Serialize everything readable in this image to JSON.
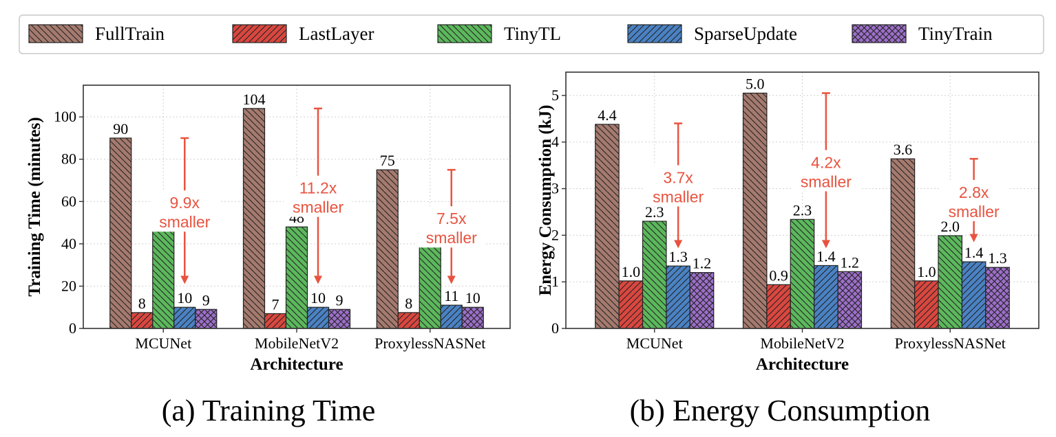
{
  "legend": {
    "entries": [
      {
        "label": "FullTrain",
        "color": "#a57a6e",
        "hatch": "back"
      },
      {
        "label": "LastLayer",
        "color": "#d9473f",
        "hatch": "fwd"
      },
      {
        "label": "TinyTL",
        "color": "#5cb85c",
        "hatch": "back"
      },
      {
        "label": "SparseUpdate",
        "color": "#4a82c3",
        "hatch": "fwd"
      },
      {
        "label": "TinyTrain",
        "color": "#9c6fc8",
        "hatch": "cross"
      }
    ]
  },
  "colors": {
    "annotation": "#e8533f",
    "grid": "#cfcfcf",
    "axis": "#333333"
  },
  "chart_data": [
    {
      "type": "bar",
      "caption": "(a) Training Time",
      "xlabel": "Architecture",
      "ylabel": "Training Time (minutes)",
      "categories": [
        "MCUNet",
        "MobileNetV2",
        "ProxylessNASNet"
      ],
      "ylim": [
        0,
        115
      ],
      "yticks": [
        0,
        20,
        40,
        60,
        80,
        100
      ],
      "grid": true,
      "series": [
        {
          "name": "FullTrain",
          "values": [
            90,
            104,
            75
          ],
          "labels": [
            "90",
            "104",
            "75"
          ]
        },
        {
          "name": "LastLayer",
          "values": [
            7.5,
            7,
            7.5
          ],
          "labels": [
            "8",
            "7",
            "8"
          ]
        },
        {
          "name": "TinyTL",
          "values": [
            47,
            48,
            41
          ],
          "labels": [
            "47",
            "48",
            "41"
          ]
        },
        {
          "name": "SparseUpdate",
          "values": [
            10,
            10,
            11
          ],
          "labels": [
            "10",
            "10",
            "11"
          ]
        },
        {
          "name": "TinyTrain",
          "values": [
            9,
            9,
            10
          ],
          "labels": [
            "9",
            "9",
            "10"
          ]
        }
      ],
      "annotations": [
        {
          "category": "MCUNet",
          "text1": "9.9x",
          "text2": "smaller",
          "from": 90,
          "to": 21
        },
        {
          "category": "MobileNetV2",
          "text1": "11.2x",
          "text2": "smaller",
          "from": 104,
          "to": 21
        },
        {
          "category": "ProxylessNASNet",
          "text1": "7.5x",
          "text2": "smaller",
          "from": 75,
          "to": 21
        }
      ]
    },
    {
      "type": "bar",
      "caption": "(b) Energy Consumption",
      "xlabel": "Architecture",
      "ylabel": "Energy Consumption (kJ)",
      "categories": [
        "MCUNet",
        "MobileNetV2",
        "ProxylessNASNet"
      ],
      "ylim": [
        0,
        5.5
      ],
      "yticks": [
        0,
        1,
        2,
        3,
        4,
        5
      ],
      "grid": true,
      "series": [
        {
          "name": "FullTrain",
          "values": [
            4.38,
            5.05,
            3.64
          ],
          "labels": [
            "4.4",
            "5.0",
            "3.6"
          ]
        },
        {
          "name": "LastLayer",
          "values": [
            1.02,
            0.94,
            1.02
          ],
          "labels": [
            "1.0",
            "0.9",
            "1.0"
          ]
        },
        {
          "name": "TinyTL",
          "values": [
            2.3,
            2.34,
            1.99
          ],
          "labels": [
            "2.3",
            "2.3",
            "2.0"
          ]
        },
        {
          "name": "SparseUpdate",
          "values": [
            1.34,
            1.35,
            1.43
          ],
          "labels": [
            "1.3",
            "1.4",
            "1.4"
          ]
        },
        {
          "name": "TinyTrain",
          "values": [
            1.2,
            1.22,
            1.31
          ],
          "labels": [
            "1.2",
            "1.2",
            "1.3"
          ]
        }
      ],
      "annotations": [
        {
          "category": "MCUNet",
          "text1": "3.7x",
          "text2": "smaller",
          "from": 4.4,
          "to": 1.72
        },
        {
          "category": "MobileNetV2",
          "text1": "4.2x",
          "text2": "smaller",
          "from": 5.05,
          "to": 1.72
        },
        {
          "category": "ProxylessNASNet",
          "text1": "2.8x",
          "text2": "smaller",
          "from": 3.64,
          "to": 1.85
        }
      ]
    }
  ]
}
